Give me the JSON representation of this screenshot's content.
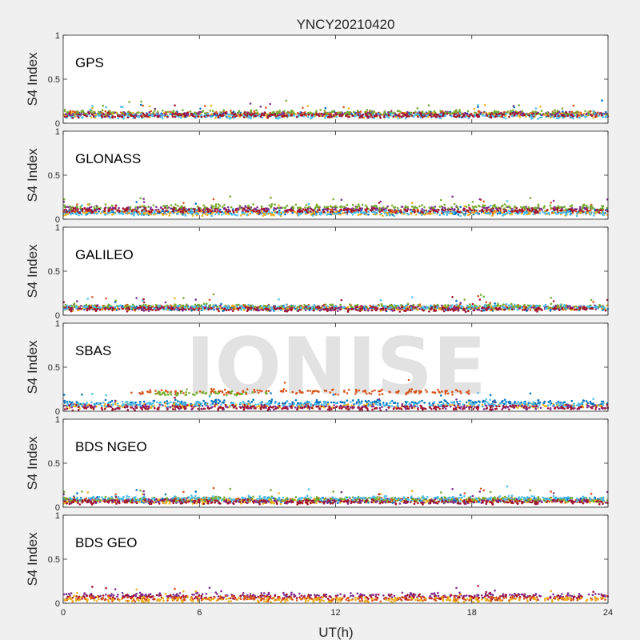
{
  "chart_data": {
    "type": "scatter",
    "title": "YNCY20210420",
    "xlabel": "UT(h)",
    "ylabel": "S4 Index",
    "xlim": [
      0,
      24
    ],
    "ylim": [
      0,
      1
    ],
    "xticks": [
      "0",
      "6",
      "12",
      "18",
      "24"
    ],
    "xtick_values": [
      0,
      6,
      12,
      18,
      24
    ],
    "yticks": [
      "0",
      "0.5",
      "1"
    ],
    "ytick_values": [
      0,
      0.5,
      1
    ],
    "grid": false,
    "watermark": "IONISE",
    "series_colors": [
      "#0072BD",
      "#D95319",
      "#EDB120",
      "#7E2F8E",
      "#77AC30",
      "#4DBEEE",
      "#A2142F"
    ],
    "panels": [
      {
        "label": "GPS",
        "series": [
          {
            "color_index": 0,
            "segments": [
              [
                0,
                24,
                0.1
              ]
            ]
          },
          {
            "color_index": 1,
            "segments": [
              [
                0,
                24,
                0.11
              ]
            ]
          },
          {
            "color_index": 2,
            "segments": [
              [
                0,
                24,
                0.09
              ]
            ]
          },
          {
            "color_index": 3,
            "segments": [
              [
                0,
                24,
                0.1
              ]
            ]
          },
          {
            "color_index": 4,
            "segments": [
              [
                0,
                24,
                0.12
              ]
            ]
          },
          {
            "color_index": 5,
            "segments": [
              [
                0,
                24,
                0.08
              ]
            ]
          },
          {
            "color_index": 6,
            "segments": [
              [
                0,
                24,
                0.09
              ]
            ]
          }
        ]
      },
      {
        "label": "GLONASS",
        "series": [
          {
            "color_index": 0,
            "segments": [
              [
                0,
                24,
                0.08
              ]
            ]
          },
          {
            "color_index": 1,
            "segments": [
              [
                0,
                24,
                0.09
              ]
            ]
          },
          {
            "color_index": 2,
            "segments": [
              [
                0,
                24,
                0.07
              ]
            ]
          },
          {
            "color_index": 3,
            "segments": [
              [
                0,
                24,
                0.12
              ]
            ]
          },
          {
            "color_index": 4,
            "segments": [
              [
                0,
                24,
                0.14
              ]
            ]
          },
          {
            "color_index": 5,
            "segments": [
              [
                0,
                24,
                0.07
              ]
            ]
          },
          {
            "color_index": 6,
            "segments": [
              [
                0,
                24,
                0.1
              ]
            ]
          }
        ]
      },
      {
        "label": "GALILEO",
        "series": [
          {
            "color_index": 0,
            "segments": [
              [
                0,
                24,
                0.08
              ]
            ]
          },
          {
            "color_index": 1,
            "segments": [
              [
                0,
                24,
                0.09
              ]
            ]
          },
          {
            "color_index": 2,
            "segments": [
              [
                0,
                24,
                0.08
              ]
            ]
          },
          {
            "color_index": 3,
            "segments": [
              [
                0,
                24,
                0.08
              ]
            ]
          },
          {
            "color_index": 4,
            "segments": [
              [
                0,
                24,
                0.1
              ]
            ]
          },
          {
            "color_index": 5,
            "segments": [
              [
                0,
                24,
                0.09
              ]
            ]
          },
          {
            "color_index": 6,
            "segments": [
              [
                0,
                24,
                0.07
              ]
            ]
          }
        ]
      },
      {
        "label": "SBAS",
        "series": [
          {
            "color_index": 0,
            "segments": [
              [
                0,
                24,
                0.1
              ]
            ]
          },
          {
            "color_index": 1,
            "segments": [
              [
                3,
                18,
                0.22
              ]
            ]
          },
          {
            "color_index": 2,
            "segments": [
              [
                0,
                24,
                0.06
              ]
            ]
          },
          {
            "color_index": 3,
            "segments": [
              [
                0,
                24,
                0.05
              ]
            ]
          },
          {
            "color_index": 4,
            "segments": [
              [
                4,
                9,
                0.2
              ]
            ]
          },
          {
            "color_index": 5,
            "segments": [
              [
                0,
                24,
                0.08
              ]
            ]
          },
          {
            "color_index": 6,
            "segments": [
              [
                0,
                24,
                0.04
              ]
            ]
          }
        ]
      },
      {
        "label": "BDS NGEO",
        "series": [
          {
            "color_index": 0,
            "segments": [
              [
                0,
                24,
                0.08
              ]
            ]
          },
          {
            "color_index": 1,
            "segments": [
              [
                0,
                24,
                0.08
              ]
            ]
          },
          {
            "color_index": 2,
            "segments": [
              [
                0,
                24,
                0.07
              ]
            ]
          },
          {
            "color_index": 3,
            "segments": [
              [
                0,
                24,
                0.07
              ]
            ]
          },
          {
            "color_index": 4,
            "segments": [
              [
                0,
                24,
                0.09
              ]
            ]
          },
          {
            "color_index": 5,
            "segments": [
              [
                0,
                24,
                0.1
              ]
            ]
          },
          {
            "color_index": 6,
            "segments": [
              [
                0,
                24,
                0.06
              ]
            ]
          }
        ]
      },
      {
        "label": "BDS GEO",
        "series": [
          {
            "color_index": 3,
            "segments": [
              [
                0,
                24,
                0.09
              ]
            ]
          },
          {
            "color_index": 6,
            "segments": [
              [
                0,
                24,
                0.07
              ]
            ]
          },
          {
            "color_index": 1,
            "segments": [
              [
                0,
                24,
                0.05
              ]
            ]
          },
          {
            "color_index": 2,
            "segments": [
              [
                0,
                24,
                0.04
              ]
            ]
          }
        ]
      }
    ]
  }
}
